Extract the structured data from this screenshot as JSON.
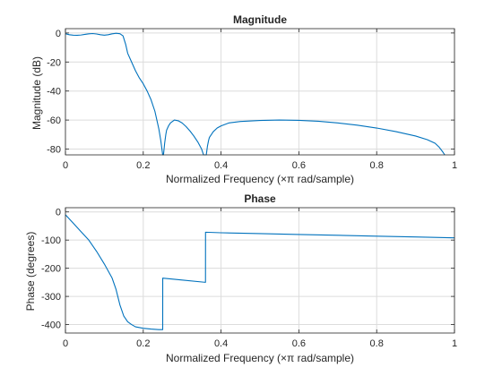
{
  "chart_data": [
    {
      "type": "line",
      "title": "Magnitude",
      "xlabel": "Normalized  Frequency    (×π  rad/sample)",
      "ylabel": "Magnitude (dB)",
      "xlim": [
        0,
        1
      ],
      "ylim": [
        -84,
        3
      ],
      "xticks": [
        0,
        0.2,
        0.4,
        0.6,
        0.8,
        1
      ],
      "xtick_labels": [
        "0",
        "0.2",
        "0.4",
        "0.6",
        "0.8",
        "1"
      ],
      "yticks": [
        0,
        -20,
        -40,
        -60,
        -80
      ],
      "ytick_labels": [
        "0",
        "-20",
        "-40",
        "-60",
        "-80"
      ],
      "grid": true,
      "series": [
        {
          "x": [
            0,
            0.01,
            0.02,
            0.03,
            0.04,
            0.05,
            0.06,
            0.07,
            0.08,
            0.09,
            0.1,
            0.11,
            0.12,
            0.13,
            0.14,
            0.148,
            0.155,
            0.16,
            0.17,
            0.18,
            0.19,
            0.2,
            0.21,
            0.22,
            0.23,
            0.24,
            0.245,
            0.25,
            0.252,
            0.255,
            0.258,
            0.26,
            0.265,
            0.27,
            0.28,
            0.29,
            0.3,
            0.31,
            0.32,
            0.33,
            0.34,
            0.35,
            0.355,
            0.36,
            0.362,
            0.365,
            0.368,
            0.37,
            0.38,
            0.39,
            0.4,
            0.42,
            0.45,
            0.5,
            0.55,
            0.6,
            0.65,
            0.7,
            0.75,
            0.8,
            0.85,
            0.9,
            0.93,
            0.95,
            0.96,
            0.97,
            0.975
          ],
          "y": [
            -0.5,
            -1.2,
            -1.5,
            -1.6,
            -1.4,
            -1,
            -0.6,
            -0.4,
            -0.7,
            -1.2,
            -1.5,
            -1.2,
            -0.6,
            -0.2,
            -0.5,
            -2,
            -8,
            -14,
            -20,
            -26,
            -31,
            -35,
            -40,
            -46,
            -54,
            -66,
            -74,
            -84,
            -84,
            -76,
            -70,
            -67,
            -64,
            -62,
            -60,
            -60.5,
            -62,
            -64.5,
            -67.5,
            -71,
            -75,
            -80,
            -84,
            -84,
            -84,
            -78,
            -74,
            -72,
            -68,
            -65.5,
            -64,
            -62,
            -61,
            -60.3,
            -60,
            -60.2,
            -60.8,
            -62,
            -63.5,
            -65.5,
            -68,
            -71,
            -73.5,
            -76,
            -78.5,
            -82,
            -84
          ]
        }
      ]
    },
    {
      "type": "line",
      "title": "Phase",
      "xlabel": "Normalized  Frequency    (×π  rad/sample)",
      "ylabel": "Phase (degrees)",
      "xlim": [
        0,
        1
      ],
      "ylim": [
        -430,
        15
      ],
      "xticks": [
        0,
        0.2,
        0.4,
        0.6,
        0.8,
        1
      ],
      "xtick_labels": [
        "0",
        "0.2",
        "0.4",
        "0.6",
        "0.8",
        "1"
      ],
      "yticks": [
        0,
        -100,
        -200,
        -300,
        -400
      ],
      "ytick_labels": [
        "0",
        "-100",
        "-200",
        "-300",
        "-400"
      ],
      "grid": true,
      "series": [
        {
          "x": [
            0,
            0.02,
            0.04,
            0.06,
            0.08,
            0.1,
            0.12,
            0.13,
            0.14,
            0.15,
            0.16,
            0.17,
            0.18,
            0.2,
            0.22,
            0.24,
            0.25,
            0.2501,
            0.3,
            0.36,
            0.3601,
            0.4,
            0.5,
            0.6,
            0.7,
            0.8,
            0.9,
            1
          ],
          "y": [
            -10,
            -40,
            -70,
            -100,
            -140,
            -185,
            -235,
            -275,
            -330,
            -370,
            -390,
            -400,
            -408,
            -413,
            -416,
            -418,
            -418,
            -235,
            -242,
            -250,
            -72,
            -74,
            -77,
            -80,
            -83,
            -86,
            -89,
            -92
          ]
        }
      ]
    }
  ]
}
